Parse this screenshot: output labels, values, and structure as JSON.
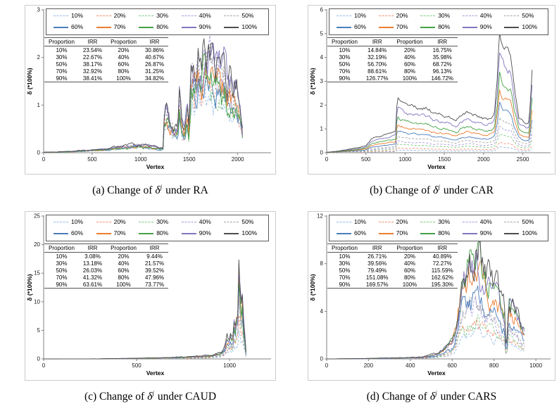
{
  "figure": {
    "xlabel": "Vertex",
    "ylabel": "δ (*100%)",
    "table_headers": [
      "Proportion",
      "IRR",
      "Proportion",
      "IRR"
    ],
    "axis_color": "#808080",
    "text_color": "#1a1a1a",
    "frame_color": "#cccccc",
    "legend_series": [
      {
        "label": "10%",
        "color": "#92b9e4",
        "dashed": true
      },
      {
        "label": "20%",
        "color": "#f28e72",
        "dashed": true
      },
      {
        "label": "30%",
        "color": "#7fc87f",
        "dashed": true
      },
      {
        "label": "40%",
        "color": "#a79bdb",
        "dashed": true
      },
      {
        "label": "50%",
        "color": "#a6a6a6",
        "dashed": true
      },
      {
        "label": "60%",
        "color": "#4a7ebb",
        "dashed": false
      },
      {
        "label": "70%",
        "color": "#ed7d31",
        "dashed": false
      },
      {
        "label": "80%",
        "color": "#45a045",
        "dashed": false
      },
      {
        "label": "90%",
        "color": "#8274bf",
        "dashed": false
      },
      {
        "label": "100%",
        "color": "#4d4d4d",
        "dashed": false
      }
    ]
  },
  "chart_data": [
    {
      "type": "line",
      "panel": "a",
      "caption": {
        "prefix": "(a) Change of",
        "symbol": "δ",
        "sup": "j",
        "suffix": "under RA"
      },
      "xlabel": "Vertex",
      "ylabel": "δ (*100%)",
      "xlim": [
        0,
        2300
      ],
      "ylim": [
        0,
        3
      ],
      "xticks": [
        0,
        500,
        1000,
        1500,
        2000
      ],
      "yticks": [
        0,
        1,
        2,
        3
      ],
      "legend_labels": [
        "10%",
        "20%",
        "30%",
        "40%",
        "50%",
        "60%",
        "70%",
        "80%",
        "90%",
        "100%"
      ],
      "irr_table": {
        "rows": [
          [
            "10%",
            "23.54%",
            "20%",
            "30.86%"
          ],
          [
            "30%",
            "22.67%",
            "40%",
            "40.67%"
          ],
          [
            "50%",
            "38.17%",
            "60%",
            "26.87%"
          ],
          [
            "70%",
            "32.92%",
            "80%",
            "31.25%"
          ],
          [
            "90%",
            "38.41%",
            "100%",
            "34.82%"
          ]
        ]
      },
      "envelope": {
        "x": [
          0,
          150,
          300,
          500,
          650,
          750,
          850,
          950,
          1050,
          1150,
          1200,
          1230,
          1245,
          1270,
          1300,
          1340,
          1380,
          1400,
          1420,
          1450,
          1480,
          1500,
          1515,
          1530,
          1560,
          1590,
          1620,
          1650,
          1680,
          1710,
          1740,
          1770,
          1800,
          1830,
          1860,
          1890,
          1920,
          1950,
          1980,
          2010,
          2030,
          2050
        ],
        "y": [
          0.01,
          0.02,
          0.03,
          0.06,
          0.08,
          0.12,
          0.15,
          0.18,
          0.16,
          0.12,
          0.1,
          0.1,
          0.95,
          0.85,
          0.7,
          0.55,
          0.5,
          1.3,
          0.6,
          0.4,
          0.9,
          0.3,
          1.7,
          1.9,
          1.6,
          2.0,
          1.75,
          2.1,
          1.85,
          2.2,
          1.9,
          1.65,
          1.85,
          1.6,
          1.75,
          1.45,
          1.6,
          1.3,
          1.4,
          1.1,
          0.9,
          0.5
        ]
      },
      "series_multipliers": [
        0.6,
        0.75,
        0.65,
        0.9,
        0.85,
        0.7,
        0.8,
        0.72,
        0.95,
        1.0
      ],
      "jitter": 0.22
    },
    {
      "type": "line",
      "panel": "b",
      "caption": {
        "prefix": "(b) Change of",
        "symbol": "δ",
        "sup": "j",
        "suffix": "under CAR"
      },
      "xlabel": "Vertex",
      "ylabel": "δ (*100%)",
      "xlim": [
        0,
        2800
      ],
      "ylim": [
        0,
        6
      ],
      "xticks": [
        0,
        500,
        1000,
        1500,
        2000,
        2500
      ],
      "yticks": [
        0,
        1,
        2,
        3,
        4,
        5,
        6
      ],
      "legend_labels": [
        "10%",
        "20%",
        "30%",
        "40%",
        "50%",
        "60%",
        "70%",
        "80%",
        "90%",
        "100%"
      ],
      "irr_table": {
        "rows": [
          [
            "10%",
            "14.84%",
            "20%",
            "16.75%"
          ],
          [
            "30%",
            "32.19%",
            "40%",
            "35.98%"
          ],
          [
            "50%",
            "56.70%",
            "60%",
            "68.72%"
          ],
          [
            "70%",
            "88.61%",
            "80%",
            "96.13%"
          ],
          [
            "90%",
            "126.77%",
            "100%",
            "146.72%"
          ]
        ]
      },
      "envelope": {
        "x": [
          0,
          100,
          200,
          300,
          400,
          500,
          540,
          560,
          600,
          650,
          700,
          750,
          800,
          850,
          880,
          895,
          905,
          950,
          1000,
          1100,
          1200,
          1300,
          1360,
          1450,
          1550,
          1640,
          1660,
          1700,
          1750,
          1800,
          1850,
          1900,
          1950,
          2000,
          2050,
          2100,
          2140,
          2160,
          2180,
          2200,
          2230,
          2260,
          2300,
          2350,
          2390,
          2420,
          2450,
          2500,
          2550,
          2580,
          2600,
          2620
        ],
        "y": [
          0.02,
          0.05,
          0.1,
          0.16,
          0.22,
          0.3,
          0.45,
          0.55,
          0.62,
          0.68,
          0.72,
          0.76,
          0.82,
          0.86,
          0.9,
          2.05,
          2.3,
          2.15,
          2.05,
          1.95,
          1.9,
          1.85,
          1.65,
          1.6,
          1.52,
          1.3,
          1.35,
          1.55,
          1.62,
          1.72,
          1.62,
          1.55,
          1.5,
          1.45,
          1.42,
          1.5,
          1.7,
          2.6,
          3.2,
          5.2,
          4.7,
          4.45,
          4.3,
          4.15,
          2.8,
          2.2,
          1.55,
          1.35,
          1.28,
          1.3,
          2.4,
          3.5
        ]
      },
      "series_multipliers": [
        0.05,
        0.09,
        0.16,
        0.22,
        0.3,
        0.4,
        0.52,
        0.64,
        0.82,
        1.0
      ],
      "jitter": 0.04
    },
    {
      "type": "line",
      "panel": "c",
      "caption": {
        "prefix": "(c) Change of",
        "symbol": "δ",
        "sup": "j",
        "suffix": "under CAUD"
      },
      "xlabel": "Vertex",
      "ylabel": "δ (*100%)",
      "xlim": [
        0,
        1200
      ],
      "ylim": [
        0,
        25
      ],
      "xticks": [
        0,
        500,
        1000
      ],
      "yticks": [
        0,
        5,
        10,
        15,
        20,
        25
      ],
      "legend_labels": [
        "10%",
        "20%",
        "30%",
        "40%",
        "50%",
        "60%",
        "70%",
        "80%",
        "90%",
        "100%"
      ],
      "irr_table": {
        "rows": [
          [
            "10%",
            "3.08%",
            "20%",
            "9.44%"
          ],
          [
            "30%",
            "13.18%",
            "40%",
            "21.57%"
          ],
          [
            "50%",
            "26.03%",
            "60%",
            "39.52%"
          ],
          [
            "70%",
            "41.32%",
            "80%",
            "47.96%"
          ],
          [
            "90%",
            "63.61%",
            "100%",
            "73.77%"
          ]
        ]
      },
      "envelope": {
        "x": [
          0,
          300,
          420,
          500,
          600,
          700,
          800,
          850,
          900,
          930,
          950,
          965,
          975,
          985,
          995,
          1005,
          1015,
          1025,
          1032,
          1040,
          1046,
          1050,
          1054,
          1058,
          1063,
          1068,
          1073,
          1078,
          1083,
          1088
        ],
        "y": [
          0.0,
          0.02,
          0.08,
          0.12,
          0.2,
          0.28,
          0.4,
          0.5,
          0.65,
          0.9,
          1.2,
          1.6,
          2.2,
          4.2,
          3.4,
          4.6,
          3.1,
          7.6,
          5.8,
          9.6,
          8.0,
          20.5,
          12.0,
          16.5,
          9.0,
          13.5,
          5.5,
          8.8,
          3.5,
          1.5
        ]
      },
      "series_multipliers": [
        0.3,
        0.4,
        0.45,
        0.55,
        0.6,
        0.7,
        0.75,
        0.85,
        0.92,
        1.0
      ],
      "jitter": 0.15
    },
    {
      "type": "line",
      "panel": "d",
      "caption": {
        "prefix": "(d) Change of",
        "symbol": "δ",
        "sup": "j",
        "suffix": "under CARS"
      },
      "xlabel": "Vertex",
      "ylabel": "δ (*100%)",
      "xlim": [
        0,
        1050
      ],
      "ylim": [
        0,
        12
      ],
      "xticks": [
        0,
        200,
        400,
        600,
        800,
        1000
      ],
      "yticks": [
        0,
        4,
        8,
        12
      ],
      "legend_labels": [
        "10%",
        "20%",
        "30%",
        "40%",
        "50%",
        "60%",
        "70%",
        "80%",
        "90%",
        "100%"
      ],
      "irr_table": {
        "rows": [
          [
            "10%",
            "26.71%",
            "20%",
            "40.89%"
          ],
          [
            "30%",
            "39.56%",
            "40%",
            "72.27%"
          ],
          [
            "50%",
            "79.49%",
            "60%",
            "115.59%"
          ],
          [
            "70%",
            "151.08%",
            "80%",
            "162.62%"
          ],
          [
            "90%",
            "169.57%",
            "100%",
            "195.30%"
          ]
        ]
      },
      "envelope": {
        "x": [
          0,
          150,
          250,
          350,
          430,
          480,
          520,
          550,
          575,
          595,
          615,
          630,
          645,
          655,
          665,
          675,
          685,
          695,
          705,
          715,
          725,
          740,
          755,
          770,
          790,
          810,
          825,
          840,
          852,
          858,
          870,
          885,
          900,
          915,
          930,
          945
        ],
        "y": [
          0.0,
          0.03,
          0.06,
          0.1,
          0.15,
          0.25,
          0.45,
          0.8,
          1.2,
          1.6,
          2.6,
          5.0,
          6.8,
          8.0,
          7.3,
          8.8,
          9.3,
          8.8,
          9.5,
          9.1,
          9.4,
          8.5,
          8.0,
          7.6,
          7.0,
          6.4,
          5.6,
          5.0,
          4.4,
          0.3,
          5.6,
          4.9,
          4.3,
          3.7,
          3.1,
          2.6
        ]
      },
      "series_multipliers": [
        0.25,
        0.32,
        0.33,
        0.45,
        0.5,
        0.55,
        0.78,
        0.85,
        0.82,
        1.0
      ],
      "jitter": 0.18
    }
  ]
}
